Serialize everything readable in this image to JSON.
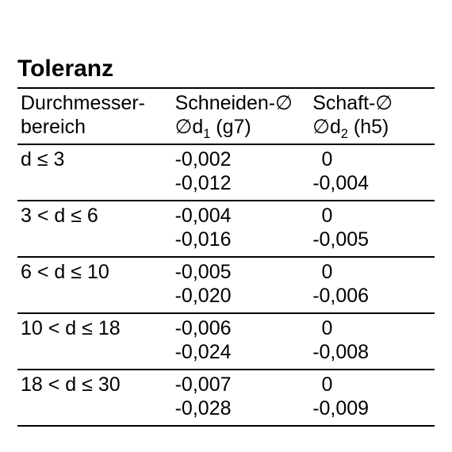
{
  "title": "Toleranz",
  "headers": {
    "col1_line1": "Durchmesser-",
    "col1_line2": "bereich",
    "col2_line1": "Schneiden-∅",
    "col2_line2_pre": "∅d",
    "col2_line2_sub": "1",
    "col2_line2_post": " (g7)",
    "col3_line1": "Schaft-∅",
    "col3_line2_pre": "∅d",
    "col3_line2_sub": "2",
    "col3_line2_post": " (h5)"
  },
  "rows": [
    {
      "range": "d ≤ 3",
      "c2a": "-0,002",
      "c2b": "-0,012",
      "c3a": "0",
      "c3b": "-0,004"
    },
    {
      "range": "3 < d ≤ 6",
      "c2a": "-0,004",
      "c2b": "-0,016",
      "c3a": "0",
      "c3b": "-0,005"
    },
    {
      "range": "6 < d ≤ 10",
      "c2a": "-0,005",
      "c2b": "-0,020",
      "c3a": "0",
      "c3b": "-0,006"
    },
    {
      "range": "10 < d ≤ 18",
      "c2a": "-0,006",
      "c2b": "-0,024",
      "c3a": "0",
      "c3b": "-0,008"
    },
    {
      "range": "18 < d ≤ 30",
      "c2a": "-0,007",
      "c2b": "-0,028",
      "c3a": "0",
      "c3b": "-0,009"
    }
  ]
}
